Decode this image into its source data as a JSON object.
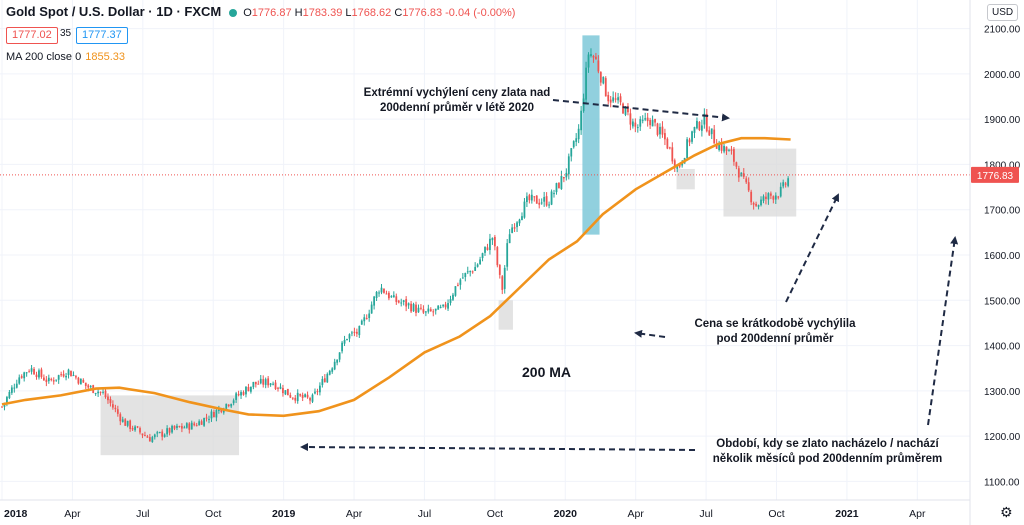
{
  "header": {
    "symbol": "Gold Spot / U.S. Dollar · 1D · FXCM",
    "o_label": "O",
    "o": "1776.87",
    "h_label": "H",
    "h": "1783.39",
    "l_label": "L",
    "l": "1768.62",
    "c_label": "C",
    "c": "1776.83",
    "change": "-0.04 (-0.00%)",
    "bid": "1777.02",
    "spread": "35",
    "ask": "1777.37",
    "ma_label": "MA 200 close 0",
    "ma_value": "1855.33",
    "currency": "USD"
  },
  "annotations": {
    "extreme": [
      "Extrémní vychýlení ceny zlata nad",
      "200denní průměr v létě 2020"
    ],
    "short": [
      "Cena se krátkodobě vychýlila",
      "pod 200denní průměr"
    ],
    "period": [
      "Období, kdy se zlato nacházelo / nachází",
      "několik měsíců pod 200denním průměrem"
    ],
    "ma": "200 MA"
  },
  "colors": {
    "up": "#26a69a",
    "down": "#ef5350",
    "ma": "#f0931c",
    "highlight_blue": "#7ec8d8",
    "highlight_grey": "#d9d9d9"
  },
  "chart_data": {
    "type": "candlestick",
    "x_tick_labels": [
      "2018",
      "Apr",
      "Jul",
      "Oct",
      "2019",
      "Apr",
      "Jul",
      "Oct",
      "2020",
      "Apr",
      "Jul",
      "Oct",
      "2021",
      "Apr"
    ],
    "y_ticks": [
      1100,
      1200,
      1300,
      1400,
      1500,
      1600,
      1700,
      1800,
      1900,
      2000,
      2100
    ],
    "y_tick_labels": [
      "1100.00",
      "1200.00",
      "1300.00",
      "1400.00",
      "1500.00",
      "1600.00",
      "1700.00",
      "1800.00",
      "1900.00",
      "2000.00",
      "2100.00"
    ],
    "ylim": [
      1070,
      2130
    ],
    "last_price": 1776.83,
    "last_price_label": "1776.83",
    "price_anchors": [
      {
        "t": 0.0,
        "v": 1265
      },
      {
        "t": 0.7,
        "v": 1330
      },
      {
        "t": 1.2,
        "v": 1350
      },
      {
        "t": 2.0,
        "v": 1320
      },
      {
        "t": 2.8,
        "v": 1345
      },
      {
        "t": 3.6,
        "v": 1310
      },
      {
        "t": 4.3,
        "v": 1295
      },
      {
        "t": 5.2,
        "v": 1230
      },
      {
        "t": 6.3,
        "v": 1195
      },
      {
        "t": 7.3,
        "v": 1215
      },
      {
        "t": 8.2,
        "v": 1225
      },
      {
        "t": 9.0,
        "v": 1250
      },
      {
        "t": 9.8,
        "v": 1280
      },
      {
        "t": 10.7,
        "v": 1315
      },
      {
        "t": 11.5,
        "v": 1320
      },
      {
        "t": 12.3,
        "v": 1290
      },
      {
        "t": 13.2,
        "v": 1280
      },
      {
        "t": 14.0,
        "v": 1350
      },
      {
        "t": 14.7,
        "v": 1420
      },
      {
        "t": 15.2,
        "v": 1430
      },
      {
        "t": 16.1,
        "v": 1530
      },
      {
        "t": 16.7,
        "v": 1500
      },
      {
        "t": 17.3,
        "v": 1490
      },
      {
        "t": 18.0,
        "v": 1470
      },
      {
        "t": 18.8,
        "v": 1480
      },
      {
        "t": 19.5,
        "v": 1545
      },
      {
        "t": 20.2,
        "v": 1575
      },
      {
        "t": 20.9,
        "v": 1640
      },
      {
        "t": 21.3,
        "v": 1520
      },
      {
        "t": 21.6,
        "v": 1650
      },
      {
        "t": 22.4,
        "v": 1720
      },
      {
        "t": 23.3,
        "v": 1720
      },
      {
        "t": 24.0,
        "v": 1780
      },
      {
        "t": 24.6,
        "v": 1880
      },
      {
        "t": 25.0,
        "v": 2050
      },
      {
        "t": 25.3,
        "v": 2030
      },
      {
        "t": 25.8,
        "v": 1950
      },
      {
        "t": 26.4,
        "v": 1930
      },
      {
        "t": 27.0,
        "v": 1880
      },
      {
        "t": 27.6,
        "v": 1900
      },
      {
        "t": 28.3,
        "v": 1850
      },
      {
        "t": 28.8,
        "v": 1790
      },
      {
        "t": 29.4,
        "v": 1870
      },
      {
        "t": 29.9,
        "v": 1900
      },
      {
        "t": 30.4,
        "v": 1850
      },
      {
        "t": 31.1,
        "v": 1820
      },
      {
        "t": 31.6,
        "v": 1760
      },
      {
        "t": 32.1,
        "v": 1710
      },
      {
        "t": 32.7,
        "v": 1730
      },
      {
        "t": 33.2,
        "v": 1740
      },
      {
        "t": 33.6,
        "v": 1777
      }
    ],
    "ma200": [
      {
        "t": 0.0,
        "v": 1270
      },
      {
        "t": 1.0,
        "v": 1280
      },
      {
        "t": 2.5,
        "v": 1290
      },
      {
        "t": 4.0,
        "v": 1305
      },
      {
        "t": 5.0,
        "v": 1307
      },
      {
        "t": 6.5,
        "v": 1295
      },
      {
        "t": 8.0,
        "v": 1275
      },
      {
        "t": 9.5,
        "v": 1258
      },
      {
        "t": 10.5,
        "v": 1248
      },
      {
        "t": 12.0,
        "v": 1245
      },
      {
        "t": 13.5,
        "v": 1255
      },
      {
        "t": 15.0,
        "v": 1280
      },
      {
        "t": 16.5,
        "v": 1330
      },
      {
        "t": 18.0,
        "v": 1385
      },
      {
        "t": 19.5,
        "v": 1420
      },
      {
        "t": 20.8,
        "v": 1465
      },
      {
        "t": 22.0,
        "v": 1525
      },
      {
        "t": 23.3,
        "v": 1590
      },
      {
        "t": 24.5,
        "v": 1630
      },
      {
        "t": 25.6,
        "v": 1690
      },
      {
        "t": 27.0,
        "v": 1745
      },
      {
        "t": 28.5,
        "v": 1790
      },
      {
        "t": 29.5,
        "v": 1820
      },
      {
        "t": 30.5,
        "v": 1845
      },
      {
        "t": 31.5,
        "v": 1858
      },
      {
        "t": 32.5,
        "v": 1858
      },
      {
        "t": 33.6,
        "v": 1855
      }
    ],
    "regions": [
      {
        "kind": "grey",
        "t0": 4.2,
        "t1": 10.1,
        "v0": 1158,
        "v1": 1290
      },
      {
        "kind": "blue",
        "t0": 24.73,
        "t1": 25.46,
        "v0": 1645,
        "v1": 2085
      },
      {
        "kind": "grey",
        "t0": 21.16,
        "t1": 21.77,
        "v0": 1435,
        "v1": 1500
      },
      {
        "kind": "grey",
        "t0": 28.74,
        "t1": 29.52,
        "v0": 1745,
        "v1": 1790
      },
      {
        "kind": "grey",
        "t0": 30.74,
        "t1": 33.84,
        "v0": 1685,
        "v1": 1835
      }
    ]
  }
}
